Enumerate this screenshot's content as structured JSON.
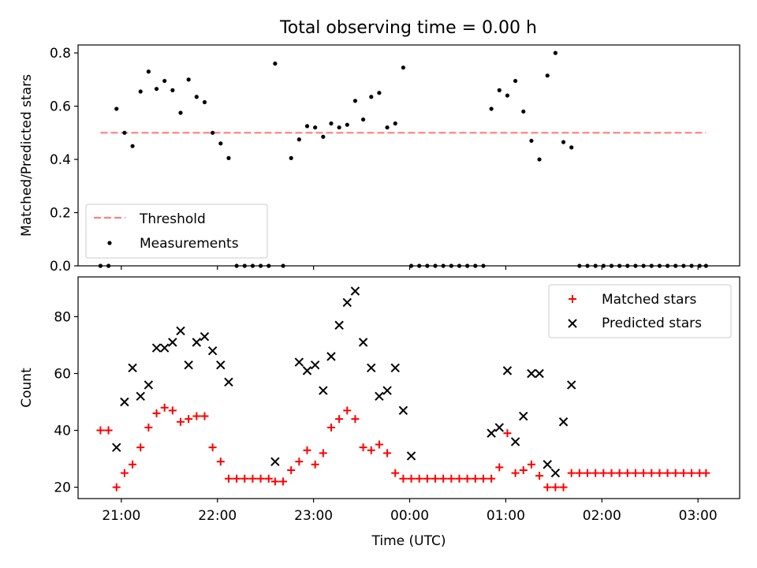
{
  "title": "Total observing time = 0.00 h",
  "chart_data": [
    {
      "type": "scatter",
      "ylabel": "Matched/Predicted stars",
      "ylim": [
        0,
        0.83
      ],
      "yticks": [
        0.0,
        0.2,
        0.4,
        0.6,
        0.8
      ],
      "ytick_labels": [
        "0.0",
        "0.2",
        "0.4",
        "0.6",
        "0.8"
      ],
      "xlim": [
        "20:33",
        "03:26"
      ],
      "grid": false,
      "legend_position": "lower left",
      "threshold": {
        "name": "Threshold",
        "value": 0.5,
        "x_range": [
          "20:47",
          "03:05"
        ],
        "color": "#ff7f7f",
        "style": "dashed"
      },
      "series": [
        {
          "name": "Measurements",
          "marker": "dot",
          "color": "#000000",
          "points": [
            [
              "20:47",
              0.0
            ],
            [
              "20:52",
              0.0
            ],
            [
              "20:57",
              0.59
            ],
            [
              "21:02",
              0.5
            ],
            [
              "21:07",
              0.45
            ],
            [
              "21:12",
              0.655
            ],
            [
              "21:17",
              0.73
            ],
            [
              "21:22",
              0.665
            ],
            [
              "21:27",
              0.695
            ],
            [
              "21:32",
              0.66
            ],
            [
              "21:37",
              0.575
            ],
            [
              "21:42",
              0.7
            ],
            [
              "21:47",
              0.635
            ],
            [
              "21:52",
              0.615
            ],
            [
              "21:57",
              0.5
            ],
            [
              "22:02",
              0.46
            ],
            [
              "22:07",
              0.405
            ],
            [
              "22:12",
              0.0
            ],
            [
              "22:17",
              0.0
            ],
            [
              "22:22",
              0.0
            ],
            [
              "22:27",
              0.0
            ],
            [
              "22:32",
              0.0
            ],
            [
              "22:36",
              0.76
            ],
            [
              "22:41",
              0.0
            ],
            [
              "22:46",
              0.405
            ],
            [
              "22:51",
              0.475
            ],
            [
              "22:56",
              0.525
            ],
            [
              "23:01",
              0.52
            ],
            [
              "23:06",
              0.485
            ],
            [
              "23:11",
              0.535
            ],
            [
              "23:16",
              0.52
            ],
            [
              "23:21",
              0.53
            ],
            [
              "23:26",
              0.62
            ],
            [
              "23:31",
              0.55
            ],
            [
              "23:36",
              0.635
            ],
            [
              "23:41",
              0.65
            ],
            [
              "23:46",
              0.52
            ],
            [
              "23:51",
              0.535
            ],
            [
              "23:56",
              0.745
            ],
            [
              "00:01",
              0.0
            ],
            [
              "00:06",
              0.0
            ],
            [
              "00:11",
              0.0
            ],
            [
              "00:16",
              0.0
            ],
            [
              "00:21",
              0.0
            ],
            [
              "00:26",
              0.0
            ],
            [
              "00:31",
              0.0
            ],
            [
              "00:36",
              0.0
            ],
            [
              "00:41",
              0.0
            ],
            [
              "00:46",
              0.0
            ],
            [
              "00:51",
              0.59
            ],
            [
              "00:56",
              0.66
            ],
            [
              "01:01",
              0.64
            ],
            [
              "01:06",
              0.695
            ],
            [
              "01:11",
              0.58
            ],
            [
              "01:16",
              0.47
            ],
            [
              "01:21",
              0.4
            ],
            [
              "01:26",
              0.715
            ],
            [
              "01:31",
              0.8
            ],
            [
              "01:36",
              0.465
            ],
            [
              "01:41",
              0.445
            ],
            [
              "01:46",
              0.0
            ],
            [
              "01:51",
              0.0
            ],
            [
              "01:56",
              0.0
            ],
            [
              "02:01",
              0.0
            ],
            [
              "02:06",
              0.0
            ],
            [
              "02:11",
              0.0
            ],
            [
              "02:16",
              0.0
            ],
            [
              "02:21",
              0.0
            ],
            [
              "02:26",
              0.0
            ],
            [
              "02:31",
              0.0
            ],
            [
              "02:36",
              0.0
            ],
            [
              "02:41",
              0.0
            ],
            [
              "02:46",
              0.0
            ],
            [
              "02:51",
              0.0
            ],
            [
              "02:56",
              0.0
            ],
            [
              "03:01",
              0.0
            ],
            [
              "03:05",
              0.0
            ]
          ]
        }
      ]
    },
    {
      "type": "scatter",
      "ylabel": "Count",
      "xlabel": "Time (UTC)",
      "ylim": [
        16,
        94
      ],
      "yticks": [
        20,
        40,
        60,
        80
      ],
      "ytick_labels": [
        "20",
        "40",
        "60",
        "80"
      ],
      "xlim": [
        "20:33",
        "03:26"
      ],
      "xticks": [
        "21:00",
        "22:00",
        "23:00",
        "00:00",
        "01:00",
        "02:00",
        "03:00"
      ],
      "grid": false,
      "legend_position": "upper right",
      "series": [
        {
          "name": "Matched stars",
          "marker": "plus",
          "color": "#ff0000",
          "points": [
            [
              "20:47",
              40
            ],
            [
              "20:52",
              40
            ],
            [
              "20:57",
              20
            ],
            [
              "21:02",
              25
            ],
            [
              "21:07",
              28
            ],
            [
              "21:12",
              34
            ],
            [
              "21:17",
              41
            ],
            [
              "21:22",
              46
            ],
            [
              "21:27",
              48
            ],
            [
              "21:32",
              47
            ],
            [
              "21:37",
              43
            ],
            [
              "21:42",
              44
            ],
            [
              "21:47",
              45
            ],
            [
              "21:52",
              45
            ],
            [
              "21:57",
              34
            ],
            [
              "22:02",
              29
            ],
            [
              "22:07",
              23
            ],
            [
              "22:12",
              23
            ],
            [
              "22:17",
              23
            ],
            [
              "22:22",
              23
            ],
            [
              "22:27",
              23
            ],
            [
              "22:32",
              23
            ],
            [
              "22:36",
              22
            ],
            [
              "22:41",
              22
            ],
            [
              "22:46",
              26
            ],
            [
              "22:51",
              29
            ],
            [
              "22:56",
              33
            ],
            [
              "23:01",
              28
            ],
            [
              "23:06",
              32
            ],
            [
              "23:11",
              41
            ],
            [
              "23:16",
              44
            ],
            [
              "23:21",
              47
            ],
            [
              "23:26",
              44
            ],
            [
              "23:31",
              34
            ],
            [
              "23:36",
              33
            ],
            [
              "23:41",
              35
            ],
            [
              "23:46",
              32
            ],
            [
              "23:51",
              25
            ],
            [
              "23:56",
              23
            ],
            [
              "00:01",
              23
            ],
            [
              "00:06",
              23
            ],
            [
              "00:11",
              23
            ],
            [
              "00:16",
              23
            ],
            [
              "00:21",
              23
            ],
            [
              "00:26",
              23
            ],
            [
              "00:31",
              23
            ],
            [
              "00:36",
              23
            ],
            [
              "00:41",
              23
            ],
            [
              "00:46",
              23
            ],
            [
              "00:51",
              23
            ],
            [
              "00:56",
              27
            ],
            [
              "01:01",
              39
            ],
            [
              "01:06",
              25
            ],
            [
              "01:11",
              26
            ],
            [
              "01:16",
              28
            ],
            [
              "01:21",
              24
            ],
            [
              "01:26",
              20
            ],
            [
              "01:31",
              20
            ],
            [
              "01:36",
              20
            ],
            [
              "01:41",
              25
            ],
            [
              "01:46",
              25
            ],
            [
              "01:51",
              25
            ],
            [
              "01:56",
              25
            ],
            [
              "02:01",
              25
            ],
            [
              "02:06",
              25
            ],
            [
              "02:11",
              25
            ],
            [
              "02:16",
              25
            ],
            [
              "02:21",
              25
            ],
            [
              "02:26",
              25
            ],
            [
              "02:31",
              25
            ],
            [
              "02:36",
              25
            ],
            [
              "02:41",
              25
            ],
            [
              "02:46",
              25
            ],
            [
              "02:51",
              25
            ],
            [
              "02:56",
              25
            ],
            [
              "03:01",
              25
            ],
            [
              "03:05",
              25
            ]
          ]
        },
        {
          "name": "Predicted stars",
          "marker": "x",
          "color": "#000000",
          "points": [
            [
              "20:57",
              34
            ],
            [
              "21:02",
              50
            ],
            [
              "21:07",
              62
            ],
            [
              "21:12",
              52
            ],
            [
              "21:17",
              56
            ],
            [
              "21:22",
              69
            ],
            [
              "21:27",
              69
            ],
            [
              "21:32",
              71
            ],
            [
              "21:37",
              75
            ],
            [
              "21:42",
              63
            ],
            [
              "21:47",
              71
            ],
            [
              "21:52",
              73
            ],
            [
              "21:57",
              68
            ],
            [
              "22:02",
              63
            ],
            [
              "22:07",
              57
            ],
            [
              "22:36",
              29
            ],
            [
              "22:51",
              64
            ],
            [
              "22:56",
              61
            ],
            [
              "23:01",
              63
            ],
            [
              "23:06",
              54
            ],
            [
              "23:11",
              66
            ],
            [
              "23:16",
              77
            ],
            [
              "23:21",
              85
            ],
            [
              "23:26",
              89
            ],
            [
              "23:31",
              71
            ],
            [
              "23:36",
              62
            ],
            [
              "23:41",
              52
            ],
            [
              "23:46",
              54
            ],
            [
              "23:51",
              62
            ],
            [
              "23:56",
              47
            ],
            [
              "00:01",
              31
            ],
            [
              "00:51",
              39
            ],
            [
              "00:56",
              41
            ],
            [
              "01:01",
              61
            ],
            [
              "01:06",
              36
            ],
            [
              "01:11",
              45
            ],
            [
              "01:16",
              60
            ],
            [
              "01:21",
              60
            ],
            [
              "01:26",
              28
            ],
            [
              "01:31",
              25
            ],
            [
              "01:36",
              43
            ],
            [
              "01:41",
              56
            ]
          ]
        }
      ]
    }
  ]
}
